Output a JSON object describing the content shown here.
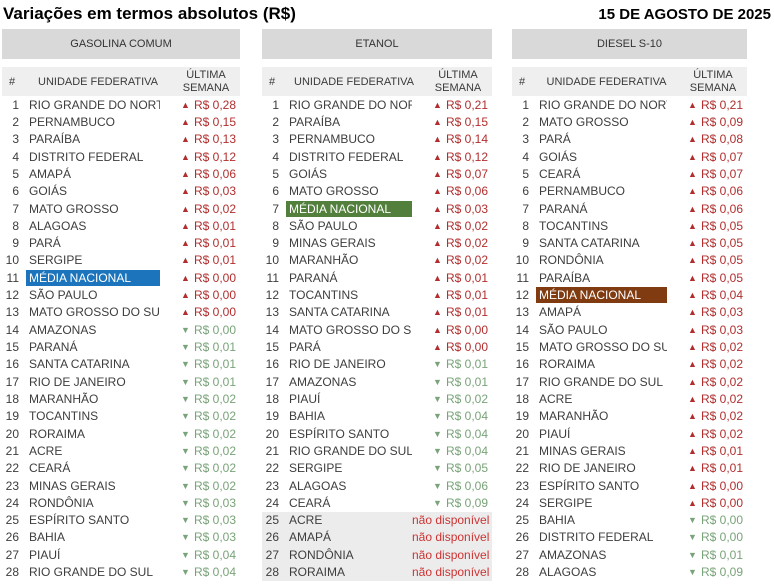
{
  "header": {
    "title": "Variações em termos absolutos (R$)",
    "date": "15 DE AGOSTO DE 2025"
  },
  "columns": {
    "rank": "#",
    "state": "UNIDADE FEDERATIVA",
    "value": "ÚLTIMA SEMANA"
  },
  "icons": {
    "up": "▲",
    "down": "▼"
  },
  "colors": {
    "up_value": "#B22E2E",
    "down_value": "#79A379",
    "not_available": "#CC3333",
    "highlight_gasolina": "#1C75BC",
    "highlight_etanol": "#527F3C",
    "highlight_diesel": "#803C10",
    "category_band": "#D9D9D9",
    "column_band": "#EFEFEF",
    "shaded_row": "#ECECEC"
  },
  "not_available_label": "não disponível",
  "chart_data": {
    "type": "table",
    "title": "Variações em termos absolutos (R$)",
    "date": "15 DE AGOSTO DE 2025",
    "columns": [
      "#",
      "UNIDADE FEDERATIVA",
      "ÚLTIMA SEMANA"
    ],
    "tables": [
      {
        "name": "GASOLINA COMUM",
        "highlight_color": "#1C75BC",
        "rows": [
          {
            "rank": 1,
            "state": "RIO GRANDE DO NORTE",
            "dir": "up",
            "value": "R$ 0,28"
          },
          {
            "rank": 2,
            "state": "PERNAMBUCO",
            "dir": "up",
            "value": "R$ 0,15"
          },
          {
            "rank": 3,
            "state": "PARAÍBA",
            "dir": "up",
            "value": "R$ 0,13"
          },
          {
            "rank": 4,
            "state": "DISTRITO FEDERAL",
            "dir": "up",
            "value": "R$ 0,12"
          },
          {
            "rank": 5,
            "state": "AMAPÁ",
            "dir": "up",
            "value": "R$ 0,06"
          },
          {
            "rank": 6,
            "state": "GOIÁS",
            "dir": "up",
            "value": "R$ 0,03"
          },
          {
            "rank": 7,
            "state": "MATO GROSSO",
            "dir": "up",
            "value": "R$ 0,02"
          },
          {
            "rank": 8,
            "state": "ALAGOAS",
            "dir": "up",
            "value": "R$ 0,01"
          },
          {
            "rank": 9,
            "state": "PARÁ",
            "dir": "up",
            "value": "R$ 0,01"
          },
          {
            "rank": 10,
            "state": "SERGIPE",
            "dir": "up",
            "value": "R$ 0,01"
          },
          {
            "rank": 11,
            "state": "MÉDIA NACIONAL",
            "dir": "up",
            "value": "R$ 0,00",
            "highlight": true
          },
          {
            "rank": 12,
            "state": "SÃO PAULO",
            "dir": "up",
            "value": "R$ 0,00"
          },
          {
            "rank": 13,
            "state": "MATO GROSSO DO SUL",
            "dir": "up",
            "value": "R$ 0,00"
          },
          {
            "rank": 14,
            "state": "AMAZONAS",
            "dir": "down",
            "value": "R$ 0,00"
          },
          {
            "rank": 15,
            "state": "PARANÁ",
            "dir": "down",
            "value": "R$ 0,01"
          },
          {
            "rank": 16,
            "state": "SANTA CATARINA",
            "dir": "down",
            "value": "R$ 0,01"
          },
          {
            "rank": 17,
            "state": "RIO DE JANEIRO",
            "dir": "down",
            "value": "R$ 0,01"
          },
          {
            "rank": 18,
            "state": "MARANHÃO",
            "dir": "down",
            "value": "R$ 0,02"
          },
          {
            "rank": 19,
            "state": "TOCANTINS",
            "dir": "down",
            "value": "R$ 0,02"
          },
          {
            "rank": 20,
            "state": "RORAIMA",
            "dir": "down",
            "value": "R$ 0,02"
          },
          {
            "rank": 21,
            "state": "ACRE",
            "dir": "down",
            "value": "R$ 0,02"
          },
          {
            "rank": 22,
            "state": "CEARÁ",
            "dir": "down",
            "value": "R$ 0,02"
          },
          {
            "rank": 23,
            "state": "MINAS GERAIS",
            "dir": "down",
            "value": "R$ 0,02"
          },
          {
            "rank": 24,
            "state": "RONDÔNIA",
            "dir": "down",
            "value": "R$ 0,03"
          },
          {
            "rank": 25,
            "state": "ESPÍRITO SANTO",
            "dir": "down",
            "value": "R$ 0,03"
          },
          {
            "rank": 26,
            "state": "BAHIA",
            "dir": "down",
            "value": "R$ 0,03"
          },
          {
            "rank": 27,
            "state": "PIAUÍ",
            "dir": "down",
            "value": "R$ 0,04"
          },
          {
            "rank": 28,
            "state": "RIO GRANDE DO SUL",
            "dir": "down",
            "value": "R$ 0,04"
          }
        ]
      },
      {
        "name": "ETANOL",
        "highlight_color": "#527F3C",
        "rows": [
          {
            "rank": 1,
            "state": "RIO GRANDE DO NORTE",
            "dir": "up",
            "value": "R$ 0,21"
          },
          {
            "rank": 2,
            "state": "PARAÍBA",
            "dir": "up",
            "value": "R$ 0,15"
          },
          {
            "rank": 3,
            "state": "PERNAMBUCO",
            "dir": "up",
            "value": "R$ 0,14"
          },
          {
            "rank": 4,
            "state": "DISTRITO FEDERAL",
            "dir": "up",
            "value": "R$ 0,12"
          },
          {
            "rank": 5,
            "state": "GOIÁS",
            "dir": "up",
            "value": "R$ 0,07"
          },
          {
            "rank": 6,
            "state": "MATO GROSSO",
            "dir": "up",
            "value": "R$ 0,06"
          },
          {
            "rank": 7,
            "state": "MÉDIA NACIONAL",
            "dir": "up",
            "value": "R$ 0,03",
            "highlight": true
          },
          {
            "rank": 8,
            "state": "SÃO PAULO",
            "dir": "up",
            "value": "R$ 0,02"
          },
          {
            "rank": 9,
            "state": "MINAS GERAIS",
            "dir": "up",
            "value": "R$ 0,02"
          },
          {
            "rank": 10,
            "state": "MARANHÃO",
            "dir": "up",
            "value": "R$ 0,02"
          },
          {
            "rank": 11,
            "state": "PARANÁ",
            "dir": "up",
            "value": "R$ 0,01"
          },
          {
            "rank": 12,
            "state": "TOCANTINS",
            "dir": "up",
            "value": "R$ 0,01"
          },
          {
            "rank": 13,
            "state": "SANTA CATARINA",
            "dir": "up",
            "value": "R$ 0,01"
          },
          {
            "rank": 14,
            "state": "MATO GROSSO DO SUL",
            "dir": "up",
            "value": "R$ 0,00"
          },
          {
            "rank": 15,
            "state": "PARÁ",
            "dir": "up",
            "value": "R$ 0,00"
          },
          {
            "rank": 16,
            "state": "RIO DE JANEIRO",
            "dir": "down",
            "value": "R$ 0,01"
          },
          {
            "rank": 17,
            "state": "AMAZONAS",
            "dir": "down",
            "value": "R$ 0,01"
          },
          {
            "rank": 18,
            "state": "PIAUÍ",
            "dir": "down",
            "value": "R$ 0,02"
          },
          {
            "rank": 19,
            "state": "BAHIA",
            "dir": "down",
            "value": "R$ 0,04"
          },
          {
            "rank": 20,
            "state": "ESPÍRITO SANTO",
            "dir": "down",
            "value": "R$ 0,04"
          },
          {
            "rank": 21,
            "state": "RIO GRANDE DO SUL",
            "dir": "down",
            "value": "R$ 0,04"
          },
          {
            "rank": 22,
            "state": "SERGIPE",
            "dir": "down",
            "value": "R$ 0,05"
          },
          {
            "rank": 23,
            "state": "ALAGOAS",
            "dir": "down",
            "value": "R$ 0,06"
          },
          {
            "rank": 24,
            "state": "CEARÁ",
            "dir": "down",
            "value": "R$ 0,09"
          },
          {
            "rank": 25,
            "state": "ACRE",
            "dir": "na",
            "value": "não disponível",
            "shaded": true
          },
          {
            "rank": 26,
            "state": "AMAPÁ",
            "dir": "na",
            "value": "não disponível",
            "shaded": true
          },
          {
            "rank": 27,
            "state": "RONDÔNIA",
            "dir": "na",
            "value": "não disponível",
            "shaded": true
          },
          {
            "rank": 28,
            "state": "RORAIMA",
            "dir": "na",
            "value": "não disponível",
            "shaded": true
          }
        ]
      },
      {
        "name": "DIESEL S-10",
        "highlight_color": "#803C10",
        "rows": [
          {
            "rank": 1,
            "state": "RIO GRANDE DO NORTE",
            "dir": "up",
            "value": "R$ 0,21"
          },
          {
            "rank": 2,
            "state": "MATO GROSSO",
            "dir": "up",
            "value": "R$ 0,09"
          },
          {
            "rank": 3,
            "state": "PARÁ",
            "dir": "up",
            "value": "R$ 0,08"
          },
          {
            "rank": 4,
            "state": "GOIÁS",
            "dir": "up",
            "value": "R$ 0,07"
          },
          {
            "rank": 5,
            "state": "CEARÁ",
            "dir": "up",
            "value": "R$ 0,07"
          },
          {
            "rank": 6,
            "state": "PERNAMBUCO",
            "dir": "up",
            "value": "R$ 0,06"
          },
          {
            "rank": 7,
            "state": "PARANÁ",
            "dir": "up",
            "value": "R$ 0,06"
          },
          {
            "rank": 8,
            "state": "TOCANTINS",
            "dir": "up",
            "value": "R$ 0,05"
          },
          {
            "rank": 9,
            "state": "SANTA CATARINA",
            "dir": "up",
            "value": "R$ 0,05"
          },
          {
            "rank": 10,
            "state": "RONDÔNIA",
            "dir": "up",
            "value": "R$ 0,05"
          },
          {
            "rank": 11,
            "state": "PARAÍBA",
            "dir": "up",
            "value": "R$ 0,05"
          },
          {
            "rank": 12,
            "state": "MÉDIA NACIONAL",
            "dir": "up",
            "value": "R$ 0,04",
            "highlight": true
          },
          {
            "rank": 13,
            "state": "AMAPÁ",
            "dir": "up",
            "value": "R$ 0,03"
          },
          {
            "rank": 14,
            "state": "SÃO PAULO",
            "dir": "up",
            "value": "R$ 0,03"
          },
          {
            "rank": 15,
            "state": "MATO GROSSO DO SUL",
            "dir": "up",
            "value": "R$ 0,02"
          },
          {
            "rank": 16,
            "state": "RORAIMA",
            "dir": "up",
            "value": "R$ 0,02"
          },
          {
            "rank": 17,
            "state": "RIO GRANDE DO SUL",
            "dir": "up",
            "value": "R$ 0,02"
          },
          {
            "rank": 18,
            "state": "ACRE",
            "dir": "up",
            "value": "R$ 0,02"
          },
          {
            "rank": 19,
            "state": "MARANHÃO",
            "dir": "up",
            "value": "R$ 0,02"
          },
          {
            "rank": 20,
            "state": "PIAUÍ",
            "dir": "up",
            "value": "R$ 0,02"
          },
          {
            "rank": 21,
            "state": "MINAS GERAIS",
            "dir": "up",
            "value": "R$ 0,01"
          },
          {
            "rank": 22,
            "state": "RIO DE JANEIRO",
            "dir": "up",
            "value": "R$ 0,01"
          },
          {
            "rank": 23,
            "state": "ESPÍRITO SANTO",
            "dir": "up",
            "value": "R$ 0,00"
          },
          {
            "rank": 24,
            "state": "SERGIPE",
            "dir": "up",
            "value": "R$ 0,00"
          },
          {
            "rank": 25,
            "state": "BAHIA",
            "dir": "down",
            "value": "R$ 0,00"
          },
          {
            "rank": 26,
            "state": "DISTRITO FEDERAL",
            "dir": "down",
            "value": "R$ 0,00"
          },
          {
            "rank": 27,
            "state": "AMAZONAS",
            "dir": "down",
            "value": "R$ 0,01"
          },
          {
            "rank": 28,
            "state": "ALAGOAS",
            "dir": "down",
            "value": "R$ 0,09"
          }
        ]
      }
    ]
  }
}
